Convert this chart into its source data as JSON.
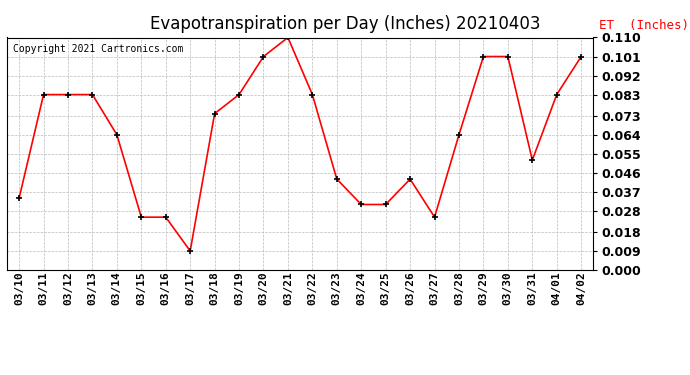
{
  "title": "Evapotranspiration per Day (Inches) 20210403",
  "copyright": "Copyright 2021 Cartronics.com",
  "legend_label": "ET  (Inches)",
  "dates": [
    "03/10",
    "03/11",
    "03/12",
    "03/13",
    "03/14",
    "03/15",
    "03/16",
    "03/17",
    "03/18",
    "03/19",
    "03/20",
    "03/21",
    "03/22",
    "03/23",
    "03/24",
    "03/25",
    "03/26",
    "03/27",
    "03/28",
    "03/29",
    "03/30",
    "03/31",
    "04/01",
    "04/02"
  ],
  "values": [
    0.034,
    0.083,
    0.083,
    0.083,
    0.064,
    0.025,
    0.025,
    0.009,
    0.074,
    0.083,
    0.101,
    0.11,
    0.083,
    0.043,
    0.031,
    0.031,
    0.043,
    0.025,
    0.064,
    0.101,
    0.101,
    0.052,
    0.083,
    0.101
  ],
  "ylim": [
    0.0,
    0.11
  ],
  "yticks": [
    0.0,
    0.009,
    0.018,
    0.028,
    0.037,
    0.046,
    0.055,
    0.064,
    0.073,
    0.083,
    0.092,
    0.101,
    0.11
  ],
  "line_color": "red",
  "marker_color": "black",
  "grid_color": "#bbbbbb",
  "bg_color": "white",
  "title_fontsize": 12,
  "copyright_fontsize": 7,
  "legend_color": "red",
  "legend_fontsize": 9,
  "tick_fontsize": 8,
  "ytick_fontsize": 9
}
